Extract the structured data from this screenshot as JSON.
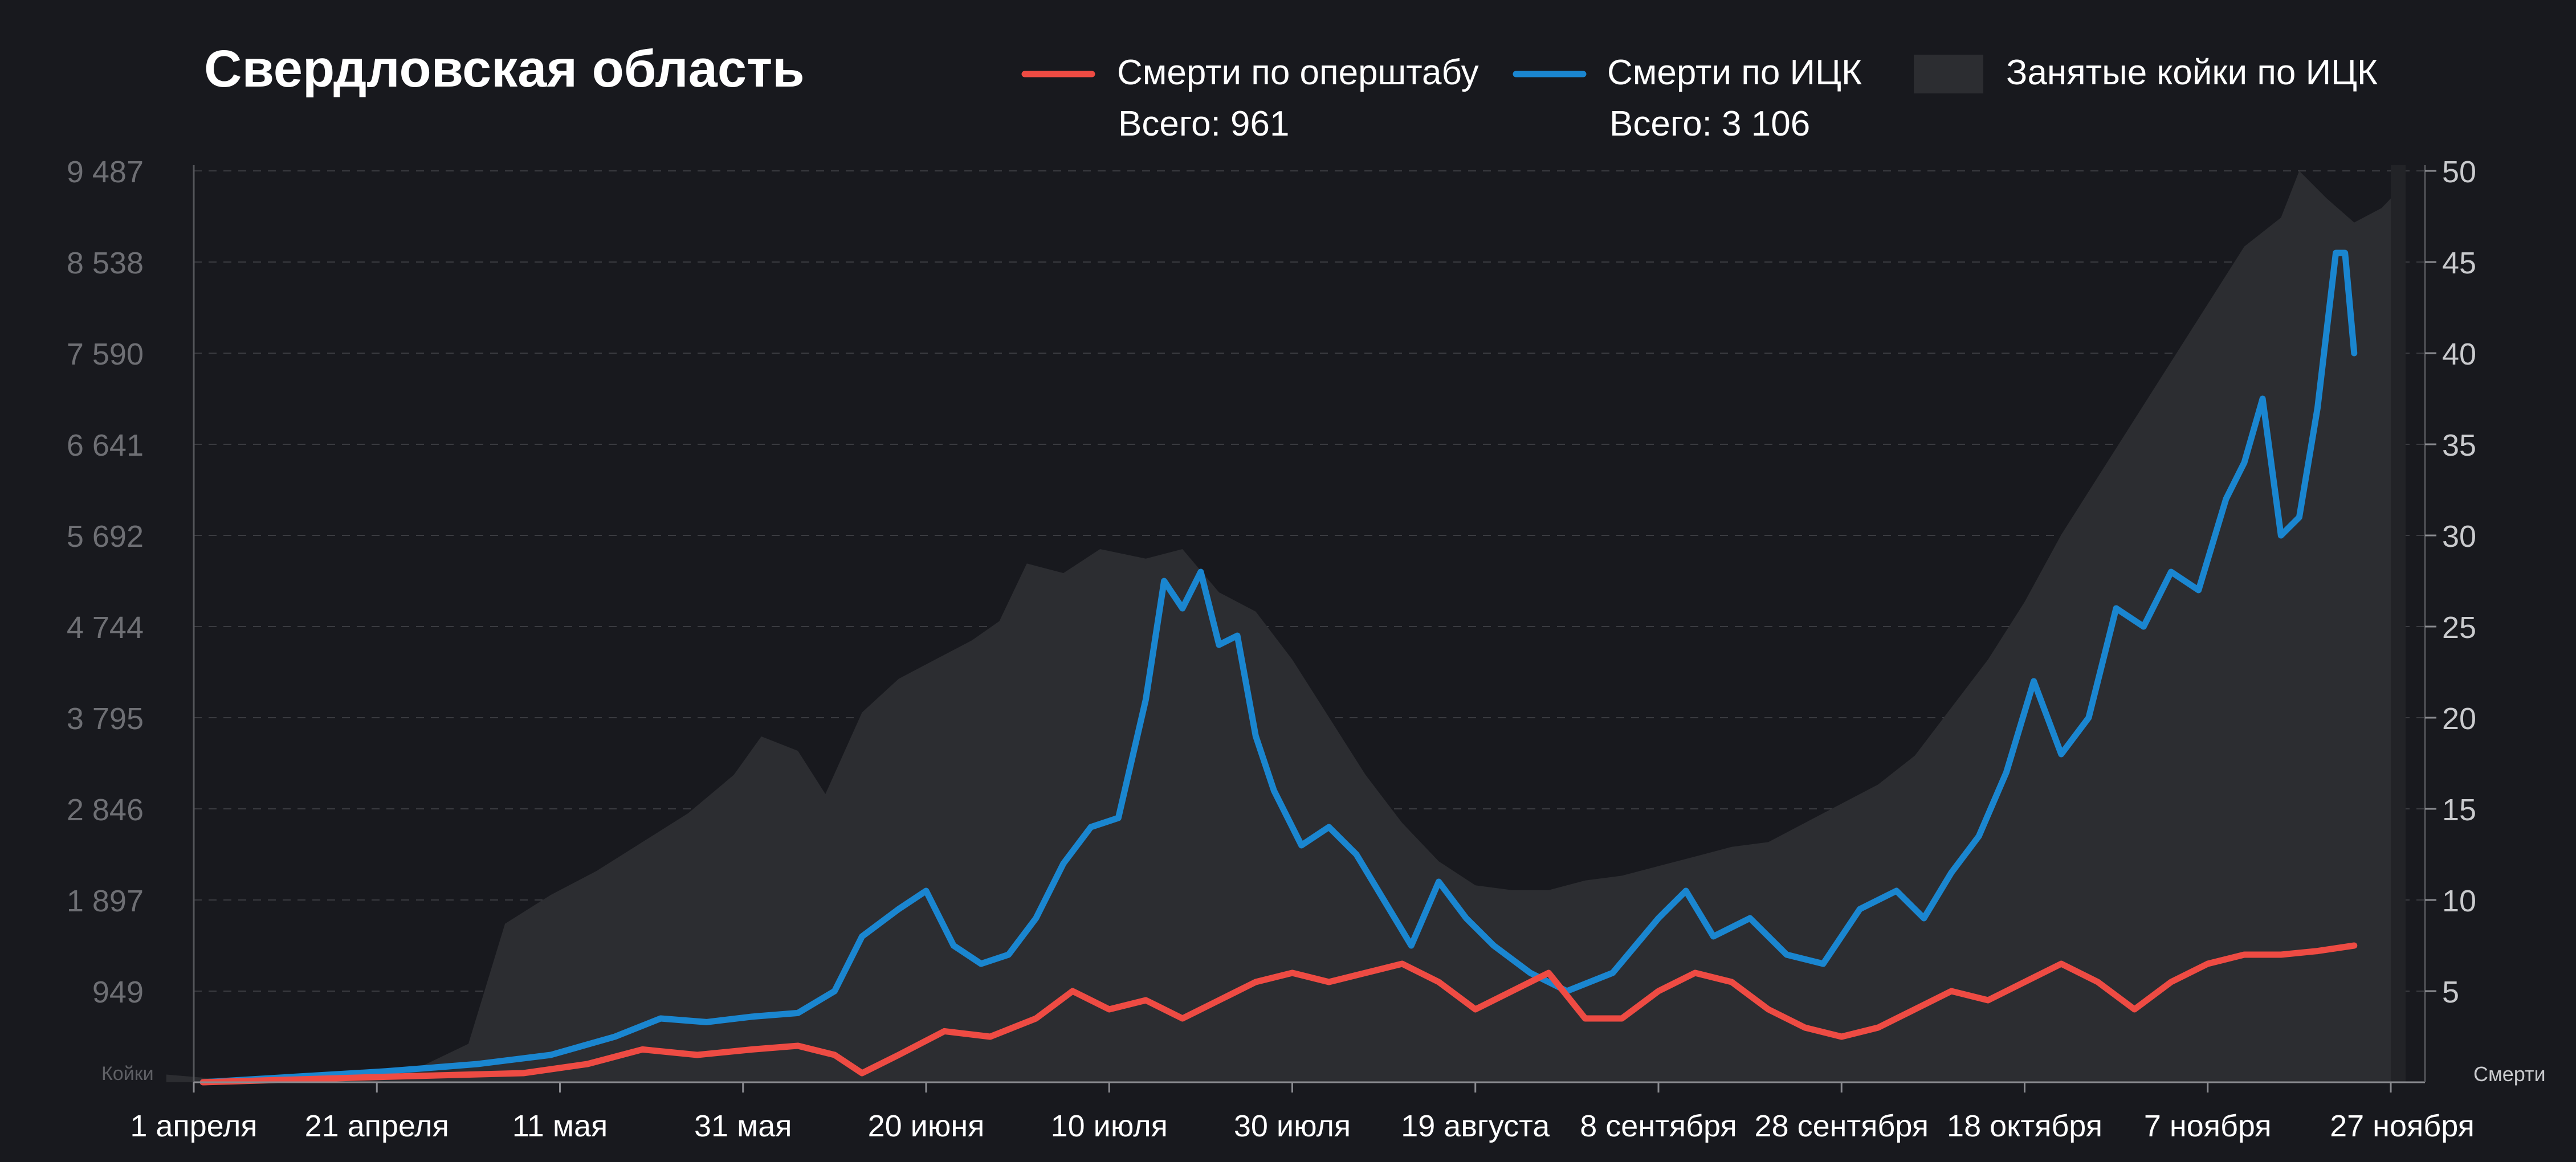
{
  "chart_data": {
    "type": "line",
    "title": "Свердловская область",
    "legend": {
      "placement": "top",
      "entries": [
        {
          "name": "Смерти по оперштабу",
          "color": "#ee4b43",
          "total_label": "Всего: 961"
        },
        {
          "name": "Смерти по ИЦК",
          "color": "#1a86d0",
          "total_label": "Всего: 3 106"
        },
        {
          "name": "Занятые койки по ИЦК",
          "color": "#2c2d31"
        }
      ]
    },
    "x_ticks": [
      "1 апреля",
      "21 апреля",
      "11 мая",
      "31 мая",
      "20 июня",
      "10 июля",
      "30 июля",
      "19 августа",
      "8 сентября",
      "28 сентября",
      "18 октября",
      "7 ноября",
      "27 ноября"
    ],
    "y_left": {
      "label": "Койки",
      "ticks": [
        "9 487",
        "8 538",
        "7 590",
        "6 641",
        "5 692",
        "4 744",
        "3 795",
        "2 846",
        "1 897",
        "949"
      ],
      "range": [
        0,
        9487
      ]
    },
    "y_right": {
      "label": "Смерти",
      "ticks": [
        "50",
        "45",
        "40",
        "35",
        "30",
        "25",
        "20",
        "15",
        "10",
        "5"
      ],
      "range": [
        0,
        50
      ]
    },
    "grid": true,
    "x_start": "2020-04-01",
    "series": [
      {
        "name": "Занятые койки по ИЦК",
        "type": "area",
        "axis": "left",
        "color": "#2c2d31",
        "points": [
          [
            "2020-03-29",
            80
          ],
          [
            "2020-04-03",
            40
          ],
          [
            "2020-04-12",
            40
          ],
          [
            "2020-04-24",
            80
          ],
          [
            "2020-05-01",
            400
          ],
          [
            "2020-05-05",
            1650
          ],
          [
            "2020-05-10",
            1950
          ],
          [
            "2020-05-15",
            2200
          ],
          [
            "2020-05-20",
            2500
          ],
          [
            "2020-05-25",
            2800
          ],
          [
            "2020-05-30",
            3200
          ],
          [
            "2020-06-02",
            3600
          ],
          [
            "2020-06-06",
            3450
          ],
          [
            "2020-06-09",
            3000
          ],
          [
            "2020-06-13",
            3850
          ],
          [
            "2020-06-17",
            4200
          ],
          [
            "2020-06-21",
            4400
          ],
          [
            "2020-06-25",
            4600
          ],
          [
            "2020-06-28",
            4800
          ],
          [
            "2020-07-01",
            5400
          ],
          [
            "2020-07-05",
            5300
          ],
          [
            "2020-07-09",
            5550
          ],
          [
            "2020-07-14",
            5450
          ],
          [
            "2020-07-18",
            5550
          ],
          [
            "2020-07-22",
            5100
          ],
          [
            "2020-07-26",
            4900
          ],
          [
            "2020-07-30",
            4400
          ],
          [
            "2020-08-03",
            3800
          ],
          [
            "2020-08-07",
            3200
          ],
          [
            "2020-08-11",
            2700
          ],
          [
            "2020-08-15",
            2300
          ],
          [
            "2020-08-19",
            2050
          ],
          [
            "2020-08-23",
            2000
          ],
          [
            "2020-08-27",
            2000
          ],
          [
            "2020-08-31",
            2100
          ],
          [
            "2020-09-04",
            2150
          ],
          [
            "2020-09-08",
            2250
          ],
          [
            "2020-09-12",
            2350
          ],
          [
            "2020-09-16",
            2450
          ],
          [
            "2020-09-20",
            2500
          ],
          [
            "2020-09-24",
            2700
          ],
          [
            "2020-09-28",
            2900
          ],
          [
            "2020-10-02",
            3100
          ],
          [
            "2020-10-06",
            3400
          ],
          [
            "2020-10-10",
            3900
          ],
          [
            "2020-10-14",
            4400
          ],
          [
            "2020-10-18",
            5000
          ],
          [
            "2020-10-22",
            5700
          ],
          [
            "2020-10-26",
            6300
          ],
          [
            "2020-10-30",
            6900
          ],
          [
            "2020-11-03",
            7500
          ],
          [
            "2020-11-07",
            8100
          ],
          [
            "2020-11-11",
            8700
          ],
          [
            "2020-11-15",
            9000
          ],
          [
            "2020-11-17",
            9487
          ],
          [
            "2020-11-20",
            9200
          ],
          [
            "2020-11-23",
            8950
          ],
          [
            "2020-11-26",
            9100
          ],
          [
            "2020-11-27",
            9200
          ]
        ]
      },
      {
        "name": "Смерти по ИЦК",
        "type": "line",
        "axis": "right",
        "color": "#1a86d0",
        "points": [
          [
            "2020-04-02",
            0
          ],
          [
            "2020-04-12",
            0.3
          ],
          [
            "2020-04-22",
            0.6
          ],
          [
            "2020-05-02",
            1.0
          ],
          [
            "2020-05-10",
            1.5
          ],
          [
            "2020-05-17",
            2.5
          ],
          [
            "2020-05-22",
            3.5
          ],
          [
            "2020-05-27",
            3.3
          ],
          [
            "2020-06-01",
            3.6
          ],
          [
            "2020-06-06",
            3.8
          ],
          [
            "2020-06-10",
            5.0
          ],
          [
            "2020-06-13",
            8.0
          ],
          [
            "2020-06-17",
            9.5
          ],
          [
            "2020-06-20",
            10.5
          ],
          [
            "2020-06-23",
            7.5
          ],
          [
            "2020-06-26",
            6.5
          ],
          [
            "2020-06-29",
            7.0
          ],
          [
            "2020-07-02",
            9.0
          ],
          [
            "2020-07-05",
            12.0
          ],
          [
            "2020-07-08",
            14.0
          ],
          [
            "2020-07-11",
            14.5
          ],
          [
            "2020-07-14",
            21.0
          ],
          [
            "2020-07-16",
            27.5
          ],
          [
            "2020-07-18",
            26.0
          ],
          [
            "2020-07-20",
            28.0
          ],
          [
            "2020-07-22",
            24.0
          ],
          [
            "2020-07-24",
            24.5
          ],
          [
            "2020-07-26",
            19.0
          ],
          [
            "2020-07-28",
            16.0
          ],
          [
            "2020-07-31",
            13.0
          ],
          [
            "2020-08-03",
            14.0
          ],
          [
            "2020-08-06",
            12.5
          ],
          [
            "2020-08-09",
            10.0
          ],
          [
            "2020-08-12",
            7.5
          ],
          [
            "2020-08-15",
            11.0
          ],
          [
            "2020-08-18",
            9.0
          ],
          [
            "2020-08-21",
            7.5
          ],
          [
            "2020-08-25",
            6.0
          ],
          [
            "2020-08-29",
            5.0
          ],
          [
            "2020-09-03",
            6.0
          ],
          [
            "2020-09-08",
            9.0
          ],
          [
            "2020-09-11",
            10.5
          ],
          [
            "2020-09-14",
            8.0
          ],
          [
            "2020-09-18",
            9.0
          ],
          [
            "2020-09-22",
            7.0
          ],
          [
            "2020-09-26",
            6.5
          ],
          [
            "2020-09-30",
            9.5
          ],
          [
            "2020-10-04",
            10.5
          ],
          [
            "2020-10-07",
            9.0
          ],
          [
            "2020-10-10",
            11.5
          ],
          [
            "2020-10-13",
            13.5
          ],
          [
            "2020-10-16",
            17.0
          ],
          [
            "2020-10-19",
            22.0
          ],
          [
            "2020-10-22",
            18.0
          ],
          [
            "2020-10-25",
            20.0
          ],
          [
            "2020-10-28",
            26.0
          ],
          [
            "2020-10-31",
            25.0
          ],
          [
            "2020-11-03",
            28.0
          ],
          [
            "2020-11-06",
            27.0
          ],
          [
            "2020-11-09",
            32.0
          ],
          [
            "2020-11-11",
            34.0
          ],
          [
            "2020-11-13",
            37.5
          ],
          [
            "2020-11-15",
            30.0
          ],
          [
            "2020-11-17",
            31.0
          ],
          [
            "2020-11-19",
            37.0
          ],
          [
            "2020-11-21",
            45.5
          ],
          [
            "2020-11-22",
            45.5
          ],
          [
            "2020-11-23",
            40.0
          ]
        ]
      },
      {
        "name": "Смерти по оперштабу",
        "type": "line",
        "axis": "right",
        "color": "#ee4b43",
        "points": [
          [
            "2020-04-02",
            0
          ],
          [
            "2020-04-22",
            0.3
          ],
          [
            "2020-05-07",
            0.5
          ],
          [
            "2020-05-14",
            1.0
          ],
          [
            "2020-05-20",
            1.8
          ],
          [
            "2020-05-26",
            1.5
          ],
          [
            "2020-06-01",
            1.8
          ],
          [
            "2020-06-06",
            2.0
          ],
          [
            "2020-06-10",
            1.5
          ],
          [
            "2020-06-13",
            0.5
          ],
          [
            "2020-06-17",
            1.5
          ],
          [
            "2020-06-22",
            2.8
          ],
          [
            "2020-06-27",
            2.5
          ],
          [
            "2020-07-02",
            3.5
          ],
          [
            "2020-07-06",
            5.0
          ],
          [
            "2020-07-10",
            4.0
          ],
          [
            "2020-07-14",
            4.5
          ],
          [
            "2020-07-18",
            3.5
          ],
          [
            "2020-07-22",
            4.5
          ],
          [
            "2020-07-26",
            5.5
          ],
          [
            "2020-07-30",
            6.0
          ],
          [
            "2020-08-03",
            5.5
          ],
          [
            "2020-08-07",
            6.0
          ],
          [
            "2020-08-11",
            6.5
          ],
          [
            "2020-08-15",
            5.5
          ],
          [
            "2020-08-19",
            4.0
          ],
          [
            "2020-08-23",
            5.0
          ],
          [
            "2020-08-27",
            6.0
          ],
          [
            "2020-08-31",
            3.5
          ],
          [
            "2020-09-04",
            3.5
          ],
          [
            "2020-09-08",
            5.0
          ],
          [
            "2020-09-12",
            6.0
          ],
          [
            "2020-09-16",
            5.5
          ],
          [
            "2020-09-20",
            4.0
          ],
          [
            "2020-09-24",
            3.0
          ],
          [
            "2020-09-28",
            2.5
          ],
          [
            "2020-10-02",
            3.0
          ],
          [
            "2020-10-06",
            4.0
          ],
          [
            "2020-10-10",
            5.0
          ],
          [
            "2020-10-14",
            4.5
          ],
          [
            "2020-10-18",
            5.5
          ],
          [
            "2020-10-22",
            6.5
          ],
          [
            "2020-10-26",
            5.5
          ],
          [
            "2020-10-30",
            4.0
          ],
          [
            "2020-11-03",
            5.5
          ],
          [
            "2020-11-07",
            6.5
          ],
          [
            "2020-11-11",
            7.0
          ],
          [
            "2020-11-15",
            7.0
          ],
          [
            "2020-11-19",
            7.2
          ],
          [
            "2020-11-23",
            7.5
          ]
        ]
      }
    ]
  }
}
